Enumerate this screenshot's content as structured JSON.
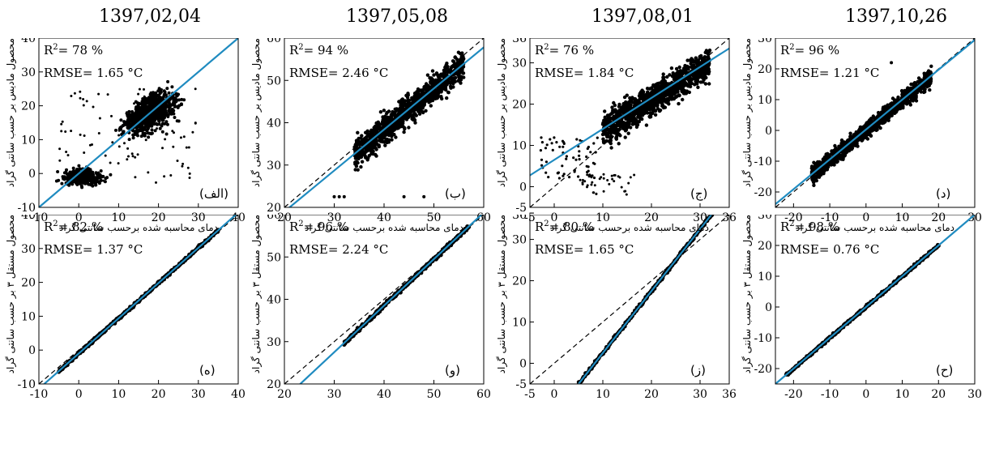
{
  "dates": [
    "1397,02,04",
    "1397,05,08",
    "1397,08,01",
    "1397,10,26"
  ],
  "ylabel_top": "محصول مادیس بر حسب سانتی گراد",
  "xlabel_top": "دمای محاسبه شده برحسب سانتی گراد",
  "ylabel_bottom": "محصول مستقل ۳ بر حسب سانتی گراد",
  "colors": {
    "points": "#000000",
    "fit_line": "#1f8bc0",
    "identity_line": "#000000"
  },
  "chart_data": [
    {
      "type": "scatter",
      "row": "top",
      "date": "1397,02,04",
      "panel_label": "(الف)",
      "r2_prefix": "R",
      "r2_value": "= 78 %",
      "rmse": "RMSE= 1.65 °C",
      "xlim": [
        -10,
        40
      ],
      "ylim": [
        -10,
        40
      ],
      "xticks": [
        -10,
        0,
        10,
        20,
        30,
        40
      ],
      "yticks": [
        -10,
        0,
        10,
        20,
        30,
        40
      ],
      "fit": {
        "slope": 1.0,
        "intercept": 0.0
      },
      "scatter_style": "cloud-modis1"
    },
    {
      "type": "scatter",
      "row": "top",
      "date": "1397,05,08",
      "panel_label": "(ب)",
      "r2_prefix": "R",
      "r2_value": "= 94 %",
      "rmse": "RMSE= 2.46 °C",
      "xlim": [
        20,
        60
      ],
      "ylim": [
        20,
        60
      ],
      "xticks": [
        20,
        30,
        40,
        50,
        60
      ],
      "yticks": [
        20,
        30,
        40,
        50,
        60
      ],
      "fit": {
        "slope": 0.97,
        "intercept": -0.4
      },
      "scatter_style": "cloud-modis2"
    },
    {
      "type": "scatter",
      "row": "top",
      "date": "1397,08,01",
      "panel_label": "(ج)",
      "r2_prefix": "R",
      "r2_value": "= 76 %",
      "rmse": "RMSE= 1.84 °C",
      "xlim": [
        -5,
        36
      ],
      "ylim": [
        -5,
        36
      ],
      "xticks": [
        -5,
        0,
        10,
        20,
        30,
        36
      ],
      "yticks": [
        -5,
        0,
        10,
        20,
        30,
        36
      ],
      "fit": {
        "slope": 0.75,
        "intercept": 6.5
      },
      "scatter_style": "cloud-modis3"
    },
    {
      "type": "scatter",
      "row": "top",
      "date": "1397,10,26",
      "panel_label": "(د)",
      "r2_prefix": "R",
      "r2_value": "= 96 %",
      "rmse": "RMSE= 1.21 °C",
      "xlim": [
        -25,
        30
      ],
      "ylim": [
        -25,
        30
      ],
      "xticks": [
        -20,
        -10,
        0,
        10,
        20,
        30
      ],
      "yticks": [
        -20,
        -10,
        0,
        10,
        20,
        30
      ],
      "fit": {
        "slope": 0.97,
        "intercept": 0.3
      },
      "scatter_style": "cloud-modis4"
    },
    {
      "type": "scatter",
      "row": "bottom",
      "date": "1397,02,04",
      "panel_label": "(ه)",
      "r2_prefix": "R",
      "r2_value": "= 82 %",
      "rmse": "RMSE= 1.37 °C",
      "xlim": [
        -10,
        40
      ],
      "ylim": [
        -10,
        40
      ],
      "xticks": [
        -10,
        0,
        10,
        20,
        30,
        40
      ],
      "yticks": [
        -10,
        0,
        10,
        20,
        30,
        40
      ],
      "fit": {
        "slope": 1.04,
        "intercept": -1.0
      },
      "scatter_style": "line",
      "line_range": [
        -5,
        35
      ]
    },
    {
      "type": "scatter",
      "row": "bottom",
      "date": "1397,05,08",
      "panel_label": "(و)",
      "r2_prefix": "R",
      "r2_value": "= 96 %",
      "rmse": "RMSE= 2.24 °C",
      "xlim": [
        20,
        60
      ],
      "ylim": [
        20,
        60
      ],
      "xticks": [
        20,
        30,
        40,
        50,
        60
      ],
      "yticks": [
        20,
        30,
        40,
        50,
        60
      ],
      "fit": {
        "slope": 1.1,
        "intercept": -5.5
      },
      "scatter_style": "line",
      "line_range": [
        32,
        57
      ]
    },
    {
      "type": "scatter",
      "row": "bottom",
      "date": "1397,08,01",
      "panel_label": "(ز)",
      "r2_prefix": "R",
      "r2_value": "= 80 %",
      "rmse": "RMSE= 1.65 °C",
      "xlim": [
        -5,
        36
      ],
      "ylim": [
        -5,
        36
      ],
      "xticks": [
        -5,
        0,
        10,
        20,
        30,
        36
      ],
      "yticks": [
        -5,
        0,
        10,
        20,
        30,
        36
      ],
      "fit": {
        "slope": 1.5,
        "intercept": -12.5
      },
      "scatter_style": "line",
      "line_range": [
        -3,
        33
      ]
    },
    {
      "type": "scatter",
      "row": "bottom",
      "date": "1397,10,26",
      "panel_label": "(ح)",
      "r2_prefix": "R",
      "r2_value": "= 98 %",
      "rmse": "RMSE= 0.76 °C",
      "xlim": [
        -25,
        30
      ],
      "ylim": [
        -25,
        30
      ],
      "xticks": [
        -20,
        -10,
        0,
        10,
        20,
        30
      ],
      "yticks": [
        -20,
        -10,
        0,
        10,
        20,
        30
      ],
      "fit": {
        "slope": 1.0,
        "intercept": 0.0
      },
      "scatter_style": "line",
      "line_range": [
        -22,
        20
      ]
    }
  ]
}
